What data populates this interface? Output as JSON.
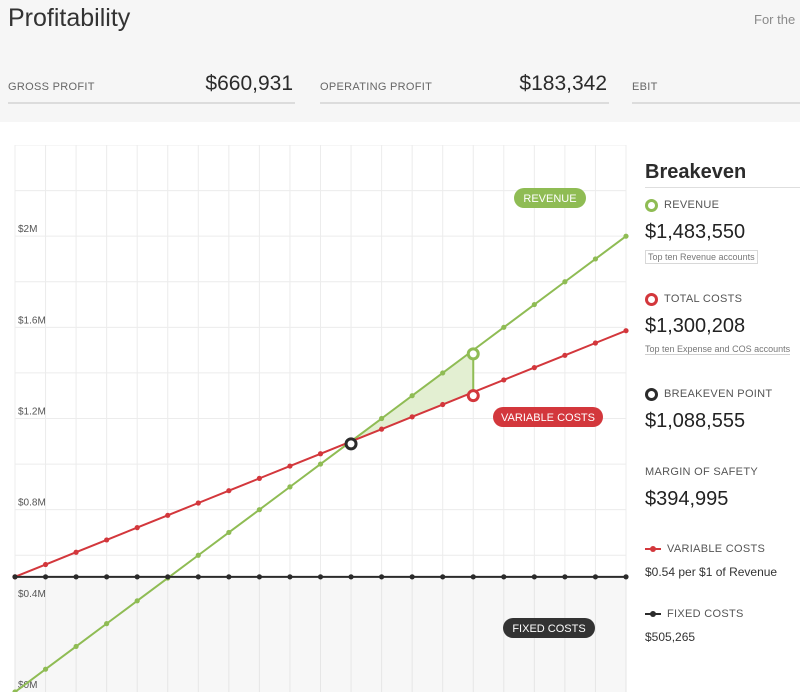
{
  "header": {
    "title": "Profitability",
    "for_text": "For the"
  },
  "kpis": [
    {
      "label": "GROSS PROFIT",
      "value": "$660,931"
    },
    {
      "label": "OPERATING PROFIT",
      "value": "$183,342"
    },
    {
      "label": "EBIT",
      "value": ""
    }
  ],
  "sidebar": {
    "title": "Breakeven",
    "revenue": {
      "label": "REVENUE",
      "value": "$1,483,550",
      "link": "Top ten Revenue accounts"
    },
    "total_costs": {
      "label": "TOTAL COSTS",
      "value": "$1,300,208",
      "link": "Top ten Expense and COS accounts"
    },
    "breakeven": {
      "label": "BREAKEVEN POINT",
      "value": "$1,088,555"
    },
    "margin": {
      "label": "MARGIN OF SAFETY",
      "value": "$394,995"
    },
    "variable_costs": {
      "label": "VARIABLE COSTS",
      "value": "$0.54 per $1 of Revenue"
    },
    "fixed_costs": {
      "label": "FIXED COSTS",
      "value": "$505,265"
    }
  },
  "colors": {
    "revenue": "#8fbc54",
    "variable": "#d3373c",
    "fixed": "#2b2b2b",
    "shade": "#e3efd2",
    "grid": "#ececec"
  },
  "chart_data": {
    "type": "line",
    "title": "Breakeven",
    "x": [
      0,
      1,
      2,
      3,
      4,
      5,
      6,
      7,
      8,
      9,
      10,
      11,
      12,
      13,
      14,
      15,
      16,
      17,
      18,
      19,
      20
    ],
    "ylim": [
      0,
      2400000
    ],
    "y_tick_values": [
      0,
      400000,
      800000,
      1200000,
      1600000,
      2000000
    ],
    "y_tick_labels": [
      "$0M",
      "$0.4M",
      "$0.8M",
      "$1.2M",
      "$1.6M",
      "$2M"
    ],
    "series": [
      {
        "name": "REVENUE",
        "values": [
          0,
          100000,
          200000,
          300000,
          400000,
          500000,
          600000,
          700000,
          800000,
          900000,
          1000000,
          1100000,
          1200000,
          1300000,
          1400000,
          1500000,
          1600000,
          1700000,
          1800000,
          1900000,
          2000000
        ]
      },
      {
        "name": "VARIABLE COSTS",
        "values": [
          505265,
          559265,
          613265,
          667265,
          721265,
          775265,
          829265,
          883265,
          937265,
          991265,
          1045265,
          1099265,
          1153265,
          1207265,
          1261265,
          1315265,
          1369265,
          1423265,
          1477265,
          1531265,
          1585265
        ]
      },
      {
        "name": "FIXED COSTS",
        "values": [
          505265,
          505265,
          505265,
          505265,
          505265,
          505265,
          505265,
          505265,
          505265,
          505265,
          505265,
          505265,
          505265,
          505265,
          505265,
          505265,
          505265,
          505265,
          505265,
          505265,
          505265
        ]
      }
    ],
    "breakeven": {
      "x": 11,
      "y": 1088555
    },
    "actual": {
      "x": 15,
      "revenue": 1483550,
      "total_costs": 1300208
    },
    "series_labels": {
      "revenue": "REVENUE",
      "variable": "VARIABLE COSTS",
      "fixed": "FIXED COSTS"
    }
  }
}
